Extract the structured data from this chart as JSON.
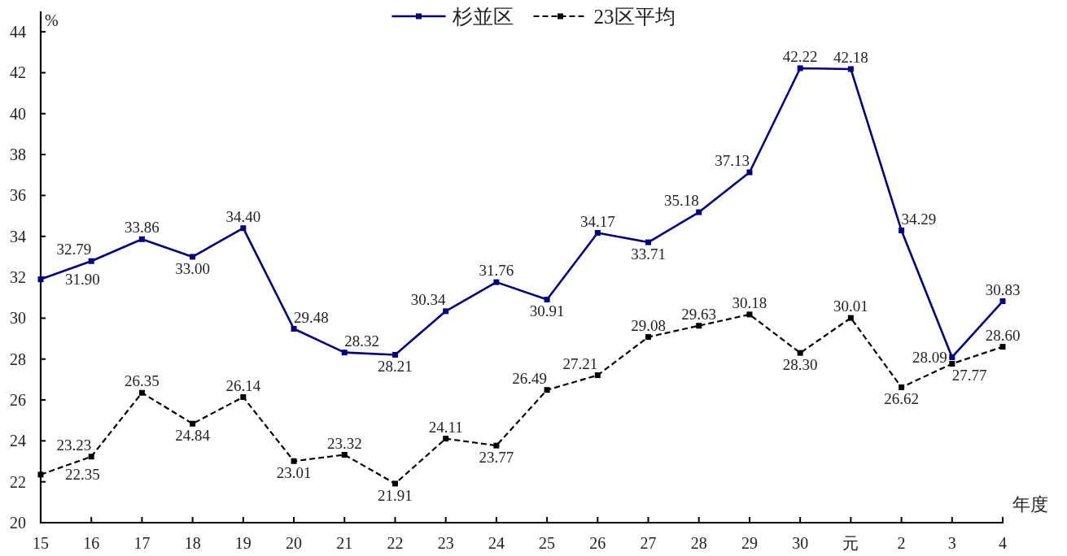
{
  "chart_data": {
    "type": "line",
    "categories": [
      "15",
      "16",
      "17",
      "18",
      "19",
      "20",
      "21",
      "22",
      "23",
      "24",
      "25",
      "26",
      "27",
      "28",
      "29",
      "30",
      "元",
      "2",
      "3",
      "4"
    ],
    "series": [
      {
        "name": "杉並区",
        "color": "#000080",
        "line_style": "solid",
        "values": [
          31.9,
          32.79,
          33.86,
          33.0,
          34.4,
          29.48,
          28.32,
          28.21,
          30.34,
          31.76,
          30.91,
          34.17,
          33.71,
          35.18,
          37.13,
          42.22,
          42.18,
          34.29,
          28.09,
          30.83
        ],
        "value_labels": [
          "31.90",
          "32.79",
          "33.86",
          "33.00",
          "34.40",
          "29.48",
          "28.32",
          "28.21",
          "30.34",
          "31.76",
          "30.91",
          "34.17",
          "33.71",
          "35.18",
          "37.13",
          "42.22",
          "42.18",
          "34.29",
          "28.09",
          "30.83"
        ]
      },
      {
        "name": "23区平均",
        "color": "#000000",
        "line_style": "dashed",
        "values": [
          22.35,
          23.23,
          26.35,
          24.84,
          26.14,
          23.01,
          23.32,
          21.91,
          24.11,
          23.77,
          26.49,
          27.21,
          29.08,
          29.63,
          30.18,
          28.3,
          30.01,
          26.62,
          27.77,
          28.6
        ],
        "value_labels": [
          "22.35",
          "23.23",
          "26.35",
          "24.84",
          "26.14",
          "23.01",
          "23.32",
          "21.91",
          "24.11",
          "23.77",
          "26.49",
          "27.21",
          "29.08",
          "29.63",
          "30.18",
          "28.30",
          "30.01",
          "26.62",
          "27.77",
          "28.60"
        ]
      }
    ],
    "ylim": [
      20,
      45
    ],
    "yticks": [
      20,
      22,
      24,
      26,
      28,
      30,
      32,
      34,
      36,
      38,
      40,
      42,
      44
    ],
    "ylabel": "%",
    "xlabel": "年度",
    "legend": "top",
    "marker": "square"
  }
}
